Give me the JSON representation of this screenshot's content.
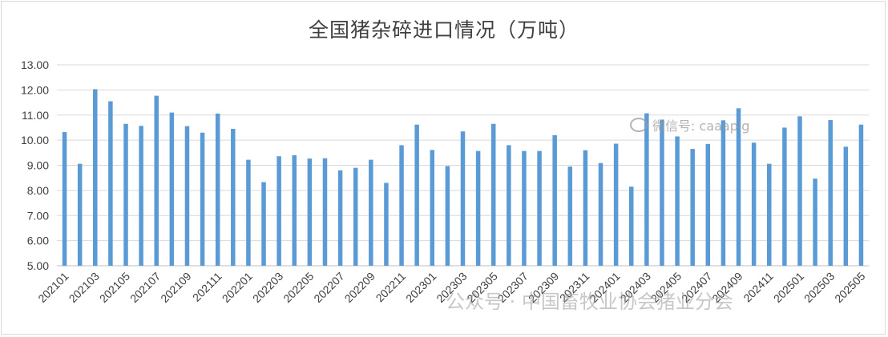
{
  "chart_data": {
    "type": "bar",
    "title": "全国猪杂碎进口情况（万吨）",
    "xlabel": "",
    "ylabel": "",
    "ylim": [
      5,
      13
    ],
    "y_ticks": [
      "5.00",
      "6.00",
      "7.00",
      "8.00",
      "9.00",
      "10.00",
      "11.00",
      "12.00",
      "13.00"
    ],
    "grid": true,
    "legend": "none",
    "bar_color": "#5b9bd5",
    "categories": [
      "202101",
      "202102",
      "202103",
      "202104",
      "202105",
      "202106",
      "202107",
      "202108",
      "202109",
      "202110",
      "202111",
      "202112",
      "202201",
      "202202",
      "202203",
      "202204",
      "202205",
      "202206",
      "202207",
      "202208",
      "202209",
      "202210",
      "202211",
      "202212",
      "202301",
      "202302",
      "202303",
      "202304",
      "202305",
      "202306",
      "202307",
      "202308",
      "202309",
      "202310",
      "202311",
      "202312",
      "202401",
      "202402",
      "202403",
      "202404",
      "202405",
      "202406",
      "202407",
      "202408",
      "202409",
      "202410",
      "202411",
      "202412",
      "202501",
      "202502",
      "202503",
      "202504",
      "202505"
    ],
    "x_tick_labels": [
      "202101",
      "202103",
      "202105",
      "202107",
      "202109",
      "202111",
      "202201",
      "202203",
      "202205",
      "202207",
      "202209",
      "202211",
      "202301",
      "202303",
      "202305",
      "202307",
      "202309",
      "202311",
      "202401",
      "202403",
      "202405",
      "202407",
      "202409",
      "202411",
      "202501",
      "202503",
      "202505"
    ],
    "values": [
      10.32,
      9.06,
      12.03,
      11.55,
      10.65,
      10.57,
      11.77,
      11.1,
      10.56,
      10.3,
      11.06,
      10.45,
      9.22,
      8.33,
      9.36,
      9.4,
      9.27,
      9.28,
      8.8,
      8.9,
      9.22,
      8.3,
      9.8,
      10.62,
      9.61,
      8.97,
      10.35,
      9.57,
      10.65,
      9.8,
      9.57,
      9.57,
      10.2,
      8.95,
      9.6,
      9.09,
      9.86,
      8.15,
      11.07,
      10.82,
      10.15,
      9.65,
      9.85,
      10.79,
      11.27,
      9.9,
      9.06,
      10.5,
      10.95,
      8.47,
      10.8,
      9.74,
      10.62
    ]
  },
  "watermark": {
    "top": "微信号: caaapig",
    "bottom": "公众号 · 中国畜牧业协会猪业分会"
  }
}
